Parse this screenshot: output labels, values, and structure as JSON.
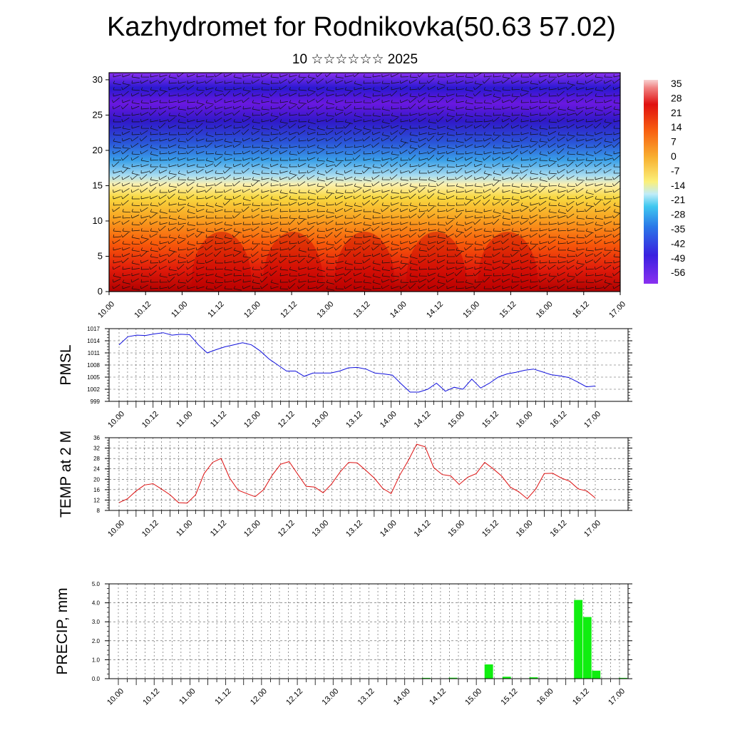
{
  "title": "Kazhydromet for Rodnikovka(50.63 57.02)",
  "subtitle": "10 ☆☆☆☆☆☆ 2025",
  "colors": {
    "pressure_line": "#1010dd",
    "temperature_line": "#dd1010",
    "precip_bar": "#10ee10",
    "grid": "#555555"
  },
  "x_tick_labels": [
    "10.00",
    "10.12",
    "11.00",
    "11.12",
    "12.00",
    "12.12",
    "13.00",
    "13.12",
    "14.00",
    "14.12",
    "15.00",
    "15.12",
    "16.00",
    "16.12",
    "17.00"
  ],
  "chart_data": [
    {
      "type": "heatmap",
      "name": "vertical-section",
      "y_ticks": [
        0,
        5,
        10,
        15,
        20,
        25,
        30
      ],
      "ylim": [
        0,
        31
      ],
      "colorbar_labels": [
        "35",
        "28",
        "21",
        "14",
        "7",
        "0",
        "-7",
        "-14",
        "-21",
        "-28",
        "-35",
        "-42",
        "-49",
        "-56"
      ],
      "colorbar_range": [
        -63,
        42
      ],
      "overlay": "wind barbs"
    },
    {
      "type": "line",
      "name": "pmsl",
      "ylabel": "PMSL",
      "ylim": [
        999,
        1017
      ],
      "y_ticks": [
        999,
        1002,
        1005,
        1008,
        1011,
        1014,
        1017
      ],
      "values": [
        1013,
        1015,
        1015.4,
        1015.3,
        1015.7,
        1016,
        1015.4,
        1015.6,
        1015.5,
        1013,
        1011,
        1011.8,
        1012.5,
        1013,
        1013.5,
        1013,
        1011.5,
        1009.5,
        1008,
        1006.5,
        1006.5,
        1005.2,
        1006,
        1006,
        1006,
        1006.5,
        1007.3,
        1007.4,
        1007,
        1006,
        1005.8,
        1005.5,
        1003.3,
        1001.3,
        1001.3,
        1002,
        1003.5,
        1001.5,
        1002.5,
        1002,
        1004.5,
        1002.3,
        1003.5,
        1005,
        1005.8,
        1006.2,
        1006.7,
        1007,
        1006.3,
        1005.6,
        1005.3,
        1004.9,
        1003.8,
        1002.6,
        1002.8
      ]
    },
    {
      "type": "line",
      "name": "temperature",
      "ylabel": "TEMP at 2 M",
      "ylim": [
        8,
        36
      ],
      "y_ticks": [
        8,
        12,
        16,
        20,
        24,
        28,
        32,
        36
      ],
      "values": [
        11,
        12.5,
        15.5,
        17.8,
        18.3,
        16.2,
        14,
        11,
        10.8,
        14,
        22.2,
        26.5,
        28,
        20.5,
        15.8,
        14.5,
        13.3,
        16,
        21.5,
        25.8,
        26.8,
        22,
        17.3,
        17,
        14.8,
        18.2,
        22.8,
        26.5,
        26.3,
        23.5,
        20.5,
        16.5,
        14.5,
        21.5,
        27.2,
        33.5,
        32.5,
        24.5,
        21.8,
        21.3,
        18,
        20.8,
        22.2,
        26.5,
        24,
        21.2,
        17,
        15.2,
        12.5,
        16.2,
        22.2,
        22.3,
        20.5,
        19.2,
        16.3,
        15.5,
        12.8
      ]
    },
    {
      "type": "bar",
      "name": "precipitation",
      "ylabel": "PRECIP, mm",
      "ylim": [
        0,
        5
      ],
      "y_ticks": [
        "0.0",
        "1.0",
        "2.0",
        "3.0",
        "4.0",
        "5.0"
      ],
      "values": [
        0,
        0,
        0,
        0,
        0,
        0,
        0,
        0,
        0,
        0,
        0,
        0.02,
        0,
        0,
        0,
        0,
        0,
        0,
        0,
        0,
        0,
        0,
        0,
        0,
        0,
        0,
        0,
        0,
        0,
        0,
        0,
        0,
        0,
        0,
        0.04,
        0,
        0,
        0.05,
        0,
        0,
        0,
        0.75,
        0,
        0.1,
        0,
        0,
        0.07,
        0,
        0,
        0,
        0,
        4.15,
        3.25,
        0.42,
        0,
        0,
        0.04
      ]
    }
  ]
}
